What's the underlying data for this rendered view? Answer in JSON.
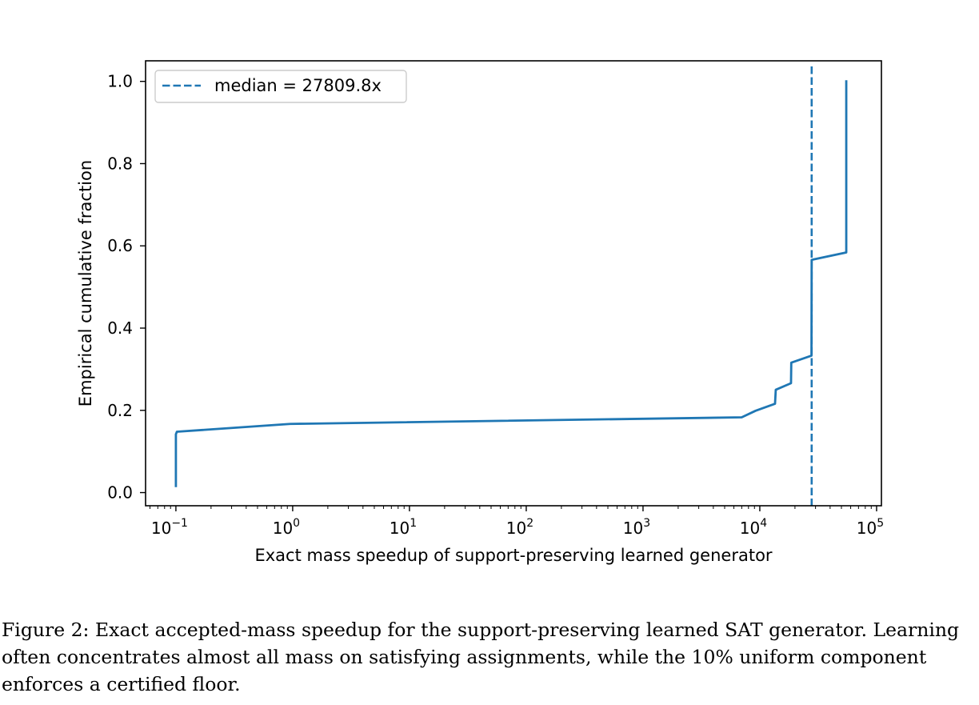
{
  "chart_data": {
    "type": "line",
    "title": "",
    "xlabel": "Exact mass speedup of support-preserving learned generator",
    "ylabel": "Empirical cumulative fraction",
    "x_scale": "log",
    "xlim": [
      0.055,
      110000
    ],
    "ylim": [
      -0.032,
      1.05
    ],
    "grid": false,
    "legend_placement": "top-left",
    "x_ticks": [
      {
        "value": 0.1,
        "base": "10",
        "exp": "−1"
      },
      {
        "value": 1,
        "base": "10",
        "exp": "0"
      },
      {
        "value": 10,
        "base": "10",
        "exp": "1"
      },
      {
        "value": 100,
        "base": "10",
        "exp": "2"
      },
      {
        "value": 1000,
        "base": "10",
        "exp": "3"
      },
      {
        "value": 10000,
        "base": "10",
        "exp": "4"
      },
      {
        "value": 100000,
        "base": "10",
        "exp": "5"
      }
    ],
    "y_ticks": [
      {
        "value": 0.0,
        "label": "0.0"
      },
      {
        "value": 0.2,
        "label": "0.2"
      },
      {
        "value": 0.4,
        "label": "0.4"
      },
      {
        "value": 0.6,
        "label": "0.6"
      },
      {
        "value": 0.8,
        "label": "0.8"
      },
      {
        "value": 1.0,
        "label": "1.0"
      }
    ],
    "series": [
      {
        "color": "#1f77b4",
        "style": "solid",
        "points": [
          [
            0.1,
            0.016
          ],
          [
            0.1,
            0.142
          ],
          [
            0.102,
            0.148
          ],
          [
            0.95,
            0.167
          ],
          [
            7000,
            0.183
          ],
          [
            9200,
            0.199
          ],
          [
            13500,
            0.216
          ],
          [
            13700,
            0.25
          ],
          [
            18500,
            0.266
          ],
          [
            18600,
            0.316
          ],
          [
            27700,
            0.333
          ],
          [
            27800,
            0.566
          ],
          [
            55000,
            0.584
          ],
          [
            55000,
            1.0
          ]
        ]
      },
      {
        "name": "median = 27809.8x",
        "color": "#1f77b4",
        "style": "dashed",
        "vline_x": 27809.8
      }
    ]
  },
  "caption": "Figure 2: Exact accepted-mass speedup for the support-preserving learned SAT generator. Learning often concentrates almost all mass on satisfying assignments, while the 10% uniform component enforces a certified floor."
}
